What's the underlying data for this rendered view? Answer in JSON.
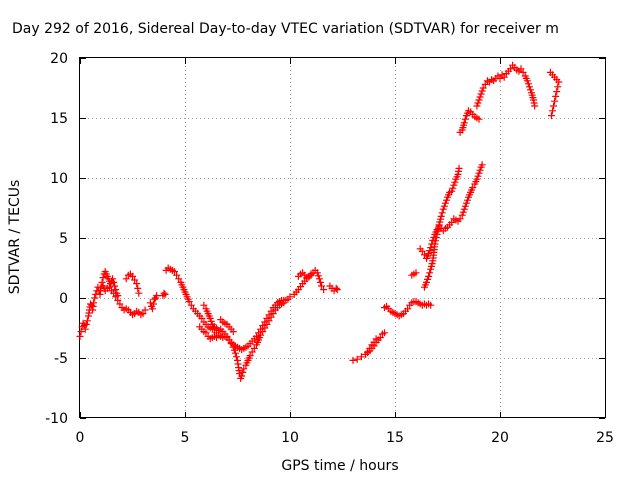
{
  "chart_data": {
    "type": "scatter",
    "title": "Day 292 of 2016, Sidereal Day-to-day VTEC variation (SDTVAR) for receiver m",
    "xlabel": "GPS time / hours",
    "ylabel": "SDTVAR / TECUs",
    "xlim": [
      0,
      25
    ],
    "ylim": [
      -10,
      20
    ],
    "xticks": [
      0,
      5,
      10,
      15,
      20,
      25
    ],
    "yticks": [
      -10,
      -5,
      0,
      5,
      10,
      15,
      20
    ],
    "xtick_labels": [
      "0",
      "5",
      "10",
      "15",
      "20",
      "25"
    ],
    "ytick_labels": [
      "-10",
      "-5",
      "0",
      "5",
      "10",
      "15",
      "20"
    ],
    "grid": true,
    "marker": "+",
    "color": "#ff0000",
    "segments": [
      [
        [
          0.0,
          -3.2
        ],
        [
          0.05,
          -2.8
        ],
        [
          0.1,
          -2.4
        ],
        [
          0.15,
          -2.1
        ],
        [
          0.2,
          -2.3
        ],
        [
          0.25,
          -2.6
        ],
        [
          0.3,
          -2.2
        ],
        [
          0.35,
          -1.9
        ],
        [
          0.4,
          -1.5
        ],
        [
          0.45,
          -1.0
        ],
        [
          0.5,
          -0.5
        ],
        [
          0.55,
          -0.6
        ],
        [
          0.6,
          -1.0
        ],
        [
          0.65,
          -0.4
        ],
        [
          0.7,
          0.0
        ],
        [
          0.75,
          0.3
        ],
        [
          0.8,
          0.6
        ],
        [
          0.85,
          0.9
        ],
        [
          0.9,
          0.6
        ],
        [
          0.95,
          0.3
        ],
        [
          1.0,
          0.9
        ],
        [
          1.05,
          1.3
        ],
        [
          1.1,
          1.7
        ],
        [
          1.15,
          2.0
        ],
        [
          1.2,
          2.2
        ],
        [
          1.25,
          2.0
        ],
        [
          1.3,
          1.8
        ],
        [
          1.35,
          1.6
        ],
        [
          1.4,
          1.4
        ],
        [
          1.45,
          1.2
        ],
        [
          1.5,
          1.4
        ],
        [
          1.55,
          1.6
        ],
        [
          1.6,
          1.3
        ],
        [
          1.65,
          1.0
        ],
        [
          1.7,
          0.7
        ],
        [
          1.75,
          0.4
        ],
        [
          1.8,
          0.2
        ]
      ],
      [
        [
          1.1,
          1.0
        ],
        [
          1.15,
          0.8
        ],
        [
          1.2,
          0.6
        ],
        [
          1.3,
          0.8
        ],
        [
          1.4,
          0.9
        ],
        [
          1.5,
          0.6
        ],
        [
          1.6,
          0.4
        ],
        [
          1.7,
          0.1
        ],
        [
          1.8,
          -0.2
        ],
        [
          1.9,
          -0.5
        ],
        [
          2.0,
          -0.8
        ],
        [
          2.1,
          -1.0
        ]
      ],
      [
        [
          2.2,
          1.6
        ],
        [
          2.3,
          1.9
        ],
        [
          2.4,
          2.0
        ],
        [
          2.5,
          1.8
        ],
        [
          2.6,
          1.5
        ],
        [
          2.7,
          1.2
        ],
        [
          2.75,
          0.8
        ],
        [
          2.8,
          0.4
        ]
      ],
      [
        [
          2.2,
          -0.9
        ],
        [
          2.3,
          -1.0
        ],
        [
          2.4,
          -1.2
        ],
        [
          2.5,
          -1.4
        ],
        [
          2.6,
          -1.3
        ],
        [
          2.7,
          -1.1
        ],
        [
          2.8,
          -1.2
        ],
        [
          2.9,
          -1.4
        ],
        [
          3.0,
          -1.3
        ],
        [
          3.1,
          -1.0
        ]
      ],
      [
        [
          3.35,
          -0.4
        ],
        [
          3.4,
          -0.7
        ],
        [
          3.45,
          -0.9
        ],
        [
          3.5,
          -0.5
        ],
        [
          3.55,
          -0.1
        ],
        [
          3.6,
          0.0
        ],
        [
          3.65,
          0.2
        ]
      ],
      [
        [
          3.95,
          0.2
        ],
        [
          4.0,
          0.4
        ],
        [
          4.05,
          0.3
        ]
      ],
      [
        [
          4.1,
          2.3
        ],
        [
          4.2,
          2.5
        ],
        [
          4.3,
          2.4
        ],
        [
          4.4,
          2.3
        ],
        [
          4.5,
          2.2
        ],
        [
          4.6,
          1.9
        ],
        [
          4.7,
          1.6
        ],
        [
          4.8,
          1.3
        ],
        [
          4.9,
          0.9
        ],
        [
          5.0,
          0.5
        ],
        [
          5.1,
          0.1
        ],
        [
          5.2,
          -0.3
        ],
        [
          5.3,
          -0.6
        ],
        [
          5.4,
          -0.9
        ],
        [
          5.5,
          -1.1
        ],
        [
          5.6,
          -1.3
        ],
        [
          5.7,
          -1.5
        ],
        [
          5.8,
          -1.7
        ],
        [
          5.9,
          -2.0
        ],
        [
          6.0,
          -2.2
        ],
        [
          6.1,
          -2.4
        ],
        [
          6.2,
          -2.5
        ],
        [
          6.3,
          -2.6
        ],
        [
          6.4,
          -2.4
        ],
        [
          6.5,
          -2.5
        ],
        [
          6.6,
          -2.7
        ],
        [
          6.7,
          -2.6
        ],
        [
          6.8,
          -2.8
        ],
        [
          6.9,
          -3.0
        ],
        [
          7.0,
          -3.2
        ],
        [
          7.1,
          -3.5
        ],
        [
          7.2,
          -3.8
        ],
        [
          7.3,
          -4.1
        ],
        [
          7.4,
          -4.6
        ],
        [
          7.5,
          -5.2
        ],
        [
          7.55,
          -5.8
        ],
        [
          7.6,
          -6.3
        ],
        [
          7.65,
          -6.7
        ],
        [
          7.7,
          -6.5
        ],
        [
          7.75,
          -6.2
        ],
        [
          7.8,
          -5.9
        ],
        [
          7.9,
          -5.6
        ],
        [
          8.0,
          -5.2
        ],
        [
          8.1,
          -4.8
        ],
        [
          8.2,
          -4.5
        ],
        [
          8.3,
          -4.2
        ],
        [
          8.4,
          -3.9
        ],
        [
          8.5,
          -3.5
        ],
        [
          8.6,
          -3.1
        ],
        [
          8.7,
          -2.8
        ],
        [
          8.8,
          -2.5
        ],
        [
          8.9,
          -2.2
        ],
        [
          9.0,
          -1.9
        ],
        [
          9.1,
          -1.6
        ],
        [
          9.2,
          -1.3
        ],
        [
          9.3,
          -1.0
        ],
        [
          9.4,
          -0.8
        ],
        [
          9.5,
          -0.6
        ],
        [
          9.6,
          -0.5
        ],
        [
          9.7,
          -0.4
        ],
        [
          9.8,
          -0.2
        ],
        [
          9.9,
          -0.1
        ]
      ],
      [
        [
          5.9,
          -0.6
        ],
        [
          6.0,
          -0.9
        ],
        [
          6.1,
          -1.3
        ],
        [
          6.2,
          -1.7
        ],
        [
          6.3,
          -2.2
        ],
        [
          6.4,
          -2.6
        ],
        [
          6.5,
          -2.9
        ],
        [
          6.6,
          -3.1
        ],
        [
          6.7,
          -3.2
        ],
        [
          6.8,
          -3.3
        ],
        [
          6.9,
          -3.2
        ],
        [
          7.0,
          -3.3
        ],
        [
          7.1,
          -3.5
        ],
        [
          7.2,
          -3.7
        ],
        [
          7.3,
          -3.9
        ],
        [
          7.4,
          -4.0
        ],
        [
          7.5,
          -4.1
        ],
        [
          7.6,
          -4.2
        ],
        [
          7.7,
          -4.3
        ],
        [
          7.8,
          -4.2
        ],
        [
          7.9,
          -4.1
        ],
        [
          8.0,
          -4.0
        ],
        [
          8.1,
          -3.8
        ],
        [
          8.2,
          -3.6
        ],
        [
          8.3,
          -3.4
        ],
        [
          8.4,
          -3.2
        ],
        [
          8.5,
          -2.9
        ],
        [
          8.6,
          -2.6
        ],
        [
          8.7,
          -2.3
        ],
        [
          8.8,
          -2.0
        ],
        [
          8.9,
          -1.7
        ],
        [
          9.0,
          -1.4
        ],
        [
          9.1,
          -1.1
        ],
        [
          9.2,
          -0.8
        ],
        [
          9.3,
          -0.6
        ],
        [
          9.4,
          -0.4
        ],
        [
          9.5,
          -0.3
        ],
        [
          9.6,
          -0.2
        ],
        [
          9.7,
          -0.2
        ]
      ],
      [
        [
          5.7,
          -2.4
        ],
        [
          5.8,
          -2.6
        ],
        [
          5.9,
          -2.8
        ],
        [
          6.0,
          -2.9
        ],
        [
          6.1,
          -3.2
        ],
        [
          6.2,
          -3.4
        ],
        [
          6.3,
          -3.3
        ],
        [
          6.4,
          -3.2
        ],
        [
          6.5,
          -3.3
        ]
      ],
      [
        [
          6.7,
          -1.8
        ],
        [
          6.8,
          -2.0
        ],
        [
          6.9,
          -2.1
        ],
        [
          7.0,
          -2.2
        ],
        [
          7.1,
          -2.4
        ],
        [
          7.2,
          -2.6
        ],
        [
          7.3,
          -2.8
        ]
      ],
      [
        [
          10.0,
          0.1
        ],
        [
          10.2,
          0.3
        ],
        [
          10.4,
          0.7
        ],
        [
          10.6,
          1.2
        ],
        [
          10.8,
          1.6
        ],
        [
          11.0,
          1.9
        ],
        [
          11.1,
          2.1
        ],
        [
          11.2,
          2.3
        ],
        [
          11.3,
          2.1
        ],
        [
          11.4,
          1.6
        ],
        [
          11.5,
          1.0
        ],
        [
          11.6,
          0.7
        ]
      ],
      [
        [
          10.4,
          1.8
        ],
        [
          10.5,
          2.0
        ],
        [
          10.6,
          2.1
        ],
        [
          10.7,
          1.9
        ],
        [
          10.8,
          1.7
        ],
        [
          10.9,
          1.8
        ],
        [
          11.0,
          2.0
        ]
      ],
      [
        [
          11.9,
          1.0
        ],
        [
          12.0,
          0.8
        ],
        [
          12.1,
          0.6
        ],
        [
          12.2,
          0.8
        ],
        [
          12.25,
          0.7
        ]
      ],
      [
        [
          13.0,
          -5.2
        ],
        [
          13.2,
          -5.1
        ],
        [
          13.4,
          -4.9
        ],
        [
          13.6,
          -4.7
        ],
        [
          13.8,
          -4.4
        ],
        [
          14.0,
          -4.0
        ],
        [
          14.1,
          -3.7
        ],
        [
          14.2,
          -3.5
        ],
        [
          14.3,
          -3.3
        ],
        [
          14.4,
          -3.0
        ],
        [
          14.5,
          -2.9
        ]
      ],
      [
        [
          13.7,
          -4.5
        ],
        [
          13.8,
          -4.2
        ],
        [
          13.9,
          -3.9
        ],
        [
          14.0,
          -3.7
        ],
        [
          14.1,
          -3.4
        ]
      ],
      [
        [
          14.5,
          -0.8
        ],
        [
          14.6,
          -0.7
        ],
        [
          14.7,
          -0.9
        ],
        [
          14.8,
          -1.1
        ],
        [
          14.9,
          -1.2
        ],
        [
          15.0,
          -1.3
        ],
        [
          15.1,
          -1.4
        ],
        [
          15.2,
          -1.5
        ],
        [
          15.3,
          -1.4
        ],
        [
          15.4,
          -1.3
        ],
        [
          15.5,
          -1.1
        ],
        [
          15.6,
          -0.9
        ],
        [
          15.7,
          -0.6
        ],
        [
          15.8,
          -0.4
        ],
        [
          15.9,
          -0.3
        ],
        [
          16.0,
          -0.3
        ],
        [
          16.1,
          -0.4
        ],
        [
          16.2,
          -0.5
        ],
        [
          16.3,
          -0.6
        ],
        [
          16.4,
          -0.5
        ],
        [
          16.5,
          -0.6
        ],
        [
          16.6,
          -0.5
        ],
        [
          16.7,
          -0.6
        ]
      ],
      [
        [
          15.8,
          1.9
        ],
        [
          15.9,
          2.0
        ],
        [
          16.0,
          2.1
        ]
      ],
      [
        [
          16.2,
          4.1
        ],
        [
          16.3,
          3.9
        ],
        [
          16.4,
          3.6
        ],
        [
          16.5,
          3.3
        ],
        [
          16.6,
          3.7
        ],
        [
          16.7,
          4.2
        ],
        [
          16.8,
          4.8
        ],
        [
          16.9,
          5.3
        ],
        [
          17.0,
          5.7
        ],
        [
          17.1,
          6.0
        ],
        [
          17.2,
          5.8
        ],
        [
          17.3,
          5.6
        ],
        [
          17.4,
          5.8
        ],
        [
          17.5,
          5.9
        ],
        [
          17.6,
          6.1
        ],
        [
          17.7,
          6.3
        ],
        [
          17.8,
          6.6
        ],
        [
          17.9,
          6.5
        ],
        [
          18.0,
          6.4
        ],
        [
          18.1,
          6.6
        ],
        [
          18.2,
          6.9
        ],
        [
          18.3,
          7.4
        ],
        [
          18.4,
          7.9
        ],
        [
          18.5,
          8.4
        ],
        [
          18.6,
          8.8
        ],
        [
          18.7,
          9.2
        ],
        [
          18.8,
          9.5
        ],
        [
          18.9,
          9.9
        ],
        [
          19.0,
          10.4
        ],
        [
          19.1,
          10.9
        ],
        [
          19.15,
          11.1
        ]
      ],
      [
        [
          16.4,
          0.9
        ],
        [
          16.5,
          1.3
        ],
        [
          16.6,
          1.8
        ],
        [
          16.7,
          2.4
        ],
        [
          16.8,
          3.1
        ],
        [
          16.85,
          3.8
        ],
        [
          16.9,
          4.5
        ],
        [
          17.0,
          5.3
        ],
        [
          17.1,
          6.1
        ],
        [
          17.2,
          6.8
        ],
        [
          17.3,
          7.4
        ],
        [
          17.4,
          7.9
        ],
        [
          17.5,
          8.4
        ],
        [
          17.6,
          8.8
        ],
        [
          17.7,
          8.9
        ],
        [
          17.8,
          9.4
        ],
        [
          17.9,
          9.9
        ],
        [
          18.0,
          10.3
        ],
        [
          18.05,
          10.8
        ]
      ],
      [
        [
          18.1,
          13.8
        ],
        [
          18.2,
          14.0
        ],
        [
          18.3,
          14.6
        ],
        [
          18.4,
          15.2
        ],
        [
          18.5,
          15.6
        ],
        [
          18.6,
          15.5
        ],
        [
          18.7,
          15.3
        ],
        [
          18.8,
          15.1
        ],
        [
          18.9,
          15.0
        ],
        [
          19.0,
          14.9
        ]
      ],
      [
        [
          18.9,
          16.0
        ],
        [
          19.0,
          16.5
        ],
        [
          19.1,
          17.0
        ],
        [
          19.2,
          17.5
        ],
        [
          19.3,
          17.8
        ],
        [
          19.4,
          18.1
        ],
        [
          19.5,
          18.0
        ],
        [
          19.6,
          18.2
        ],
        [
          19.7,
          18.1
        ],
        [
          19.8,
          18.3
        ],
        [
          19.9,
          18.5
        ],
        [
          20.0,
          18.3
        ],
        [
          20.1,
          18.6
        ],
        [
          20.2,
          18.4
        ],
        [
          20.3,
          18.7
        ],
        [
          20.4,
          18.9
        ],
        [
          20.5,
          19.1
        ],
        [
          20.6,
          19.4
        ],
        [
          20.7,
          19.2
        ],
        [
          20.8,
          19.0
        ],
        [
          20.9,
          18.9
        ],
        [
          21.0,
          19.1
        ],
        [
          21.1,
          18.8
        ],
        [
          21.2,
          18.5
        ],
        [
          21.3,
          18.1
        ],
        [
          21.4,
          17.6
        ],
        [
          21.5,
          17.1
        ],
        [
          21.6,
          16.5
        ],
        [
          21.65,
          16.0
        ]
      ],
      [
        [
          22.4,
          18.8
        ],
        [
          22.5,
          18.6
        ],
        [
          22.6,
          18.4
        ],
        [
          22.7,
          18.2
        ],
        [
          22.8,
          18.0
        ],
        [
          22.75,
          17.6
        ],
        [
          22.7,
          17.2
        ],
        [
          22.65,
          16.8
        ],
        [
          22.6,
          16.4
        ],
        [
          22.55,
          16.0
        ],
        [
          22.5,
          15.6
        ],
        [
          22.45,
          15.2
        ]
      ]
    ]
  }
}
